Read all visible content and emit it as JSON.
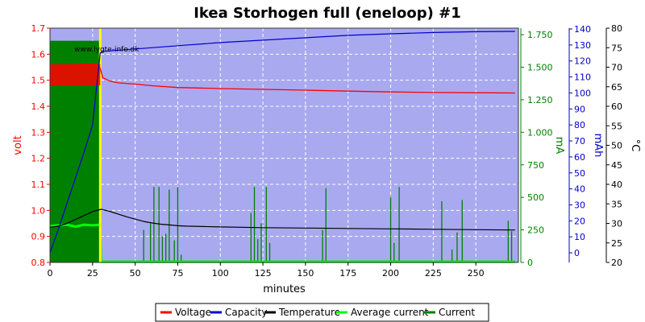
{
  "chart_data": {
    "type": "line",
    "title": "Ikea Storhogen full (eneloop) #1",
    "watermark": "www.lygte-info.dk",
    "xlabel": "minutes",
    "xlim": [
      0,
      275
    ],
    "x_ticks": [
      "0",
      "25",
      "50",
      "75",
      "100",
      "125",
      "150",
      "175",
      "200",
      "225",
      "250"
    ],
    "grid": true,
    "background_color": "#a9a9f0",
    "axes": {
      "voltage": {
        "label": "volt",
        "color": "#ff0000",
        "lim": [
          0.8,
          1.7
        ],
        "ticks": [
          "0.8",
          "0.9",
          "1.0",
          "1.1",
          "1.2",
          "1.3",
          "1.4",
          "1.5",
          "1.6",
          "1.7"
        ]
      },
      "current": {
        "label": "mA",
        "color": "#008000",
        "lim": [
          0,
          1800
        ],
        "ticks": [
          "0",
          "250",
          "500",
          "750",
          "1.000",
          "1.250",
          "1.500",
          "1.750"
        ]
      },
      "capacity": {
        "label": "mAh",
        "color": "#0000cc",
        "lim": [
          -6,
          140.5
        ],
        "ticks": [
          "0",
          "10",
          "20",
          "30",
          "40",
          "50",
          "60",
          "70",
          "80",
          "90",
          "100",
          "110",
          "120",
          "130",
          "140"
        ]
      },
      "temperature": {
        "label": "°C",
        "color": "#000000",
        "lim": [
          20,
          80
        ],
        "ticks": [
          "20",
          "25",
          "30",
          "35",
          "40",
          "45",
          "50",
          "55",
          "60",
          "65",
          "70",
          "75",
          "80"
        ]
      }
    },
    "marker_line": {
      "x": 29.5,
      "color": "#ffff00"
    },
    "legend_position": "bottom",
    "series": [
      {
        "name": "Voltage",
        "color": "#ff0000",
        "axis": "voltage",
        "x": [
          0,
          3,
          6,
          10,
          15,
          20,
          25,
          28,
          29.5,
          31,
          35,
          40,
          50,
          60,
          75,
          100,
          125,
          150,
          175,
          200,
          225,
          250,
          273
        ],
        "y": [
          1.5,
          1.53,
          1.545,
          1.555,
          1.56,
          1.562,
          1.562,
          1.56,
          1.545,
          1.51,
          1.497,
          1.49,
          1.485,
          1.479,
          1.472,
          1.468,
          1.465,
          1.462,
          1.458,
          1.455,
          1.453,
          1.452,
          1.451
        ]
      },
      {
        "name": "Capacity",
        "color": "#0000cc",
        "axis": "capacity",
        "x": [
          0,
          5,
          10,
          15,
          20,
          25,
          29.5,
          31,
          50,
          75,
          100,
          125,
          150,
          175,
          200,
          225,
          250,
          273
        ],
        "y": [
          0,
          15,
          31,
          47,
          63,
          80,
          125,
          126,
          127.5,
          129.5,
          131.5,
          133,
          134.5,
          136,
          137,
          137.8,
          138.3,
          138.5
        ]
      },
      {
        "name": "Temperature",
        "color": "#000000",
        "axis": "temperature",
        "x": [
          0,
          5,
          10,
          15,
          20,
          25,
          30,
          35,
          40,
          45,
          50,
          55,
          60,
          65,
          70,
          75,
          80,
          90,
          100,
          125,
          150,
          175,
          200,
          225,
          250,
          273
        ],
        "y": [
          29,
          29.3,
          30,
          31,
          32,
          33,
          33.6,
          33.1,
          32.4,
          31.7,
          31.1,
          30.5,
          30.1,
          29.8,
          29.6,
          29.4,
          29.3,
          29.2,
          29.1,
          28.9,
          28.8,
          28.7,
          28.6,
          28.5,
          28.4,
          28.3
        ]
      },
      {
        "name": "Average current",
        "color": "#00ff00",
        "axis": "current",
        "x": [
          0,
          5,
          10,
          15,
          20,
          25,
          29.5,
          30,
          273
        ],
        "y": [
          280,
          285,
          290,
          275,
          290,
          285,
          290,
          5,
          5
        ]
      },
      {
        "name": "Current",
        "color": "#008000",
        "axis": "current",
        "x": [
          0,
          29.5,
          30,
          273
        ],
        "y": [
          1700,
          1700,
          10,
          10
        ],
        "pulses": {
          "x": [
            55,
            59,
            61,
            64,
            66,
            68,
            70,
            73,
            75,
            77,
            118,
            120,
            122,
            124,
            127,
            129,
            160,
            162,
            200,
            202,
            205,
            230,
            236,
            239,
            242,
            269,
            271
          ],
          "y": [
            250,
            300,
            580,
            580,
            200,
            220,
            560,
            170,
            580,
            60,
            380,
            580,
            180,
            300,
            580,
            150,
            250,
            570,
            500,
            150,
            580,
            470,
            100,
            230,
            480,
            320,
            240
          ]
        }
      }
    ]
  }
}
